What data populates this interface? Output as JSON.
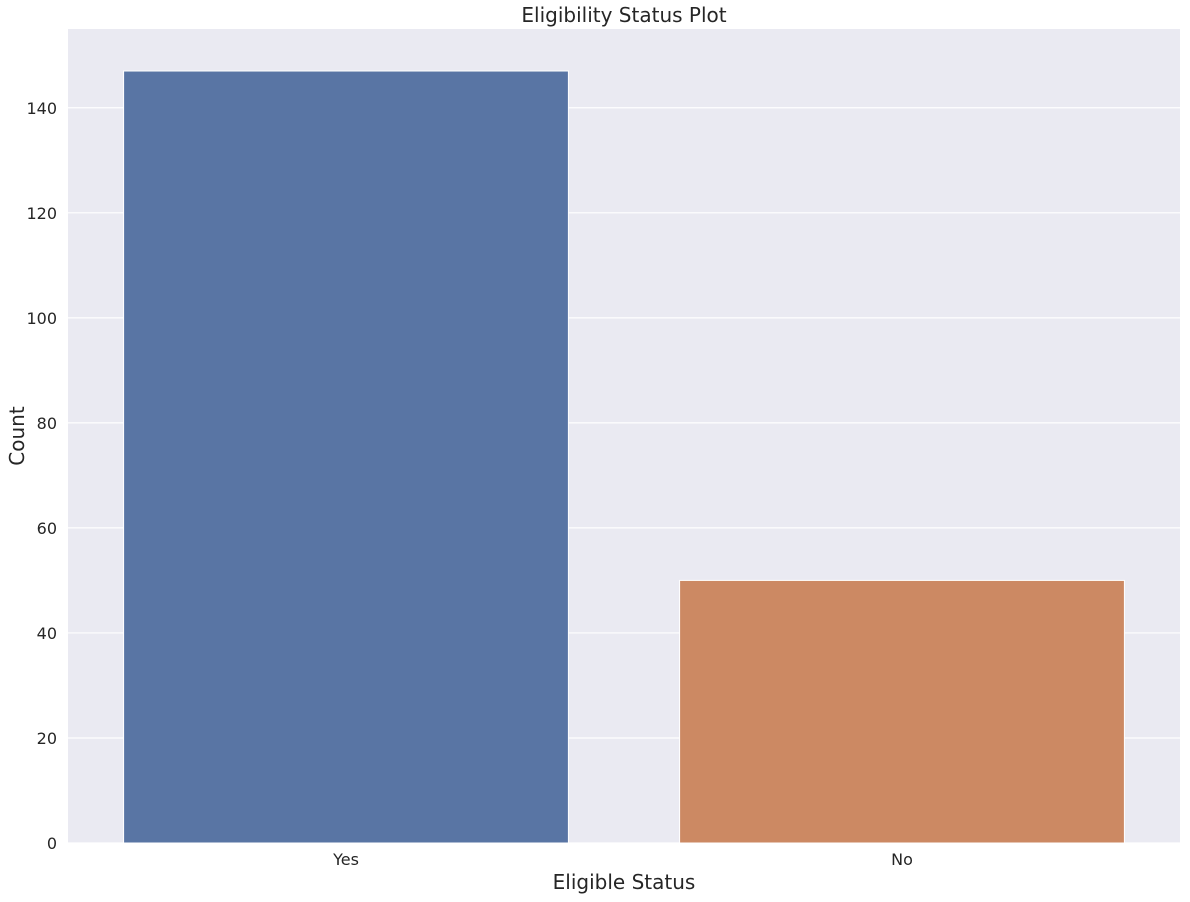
{
  "chart_data": {
    "type": "bar",
    "title": "Eligibility Status Plot",
    "xlabel": "Eligible Status",
    "ylabel": "Count",
    "categories": [
      "Yes",
      "No"
    ],
    "values": [
      147,
      50
    ],
    "ylim": [
      0,
      155
    ],
    "yticks": [
      0,
      20,
      40,
      60,
      80,
      100,
      120,
      140
    ],
    "grid": true,
    "legend": "none",
    "colors": {
      "background": "#eaeaf2",
      "grid": "#ffffff",
      "bars": [
        "#5975a4",
        "#cc8963"
      ]
    }
  }
}
